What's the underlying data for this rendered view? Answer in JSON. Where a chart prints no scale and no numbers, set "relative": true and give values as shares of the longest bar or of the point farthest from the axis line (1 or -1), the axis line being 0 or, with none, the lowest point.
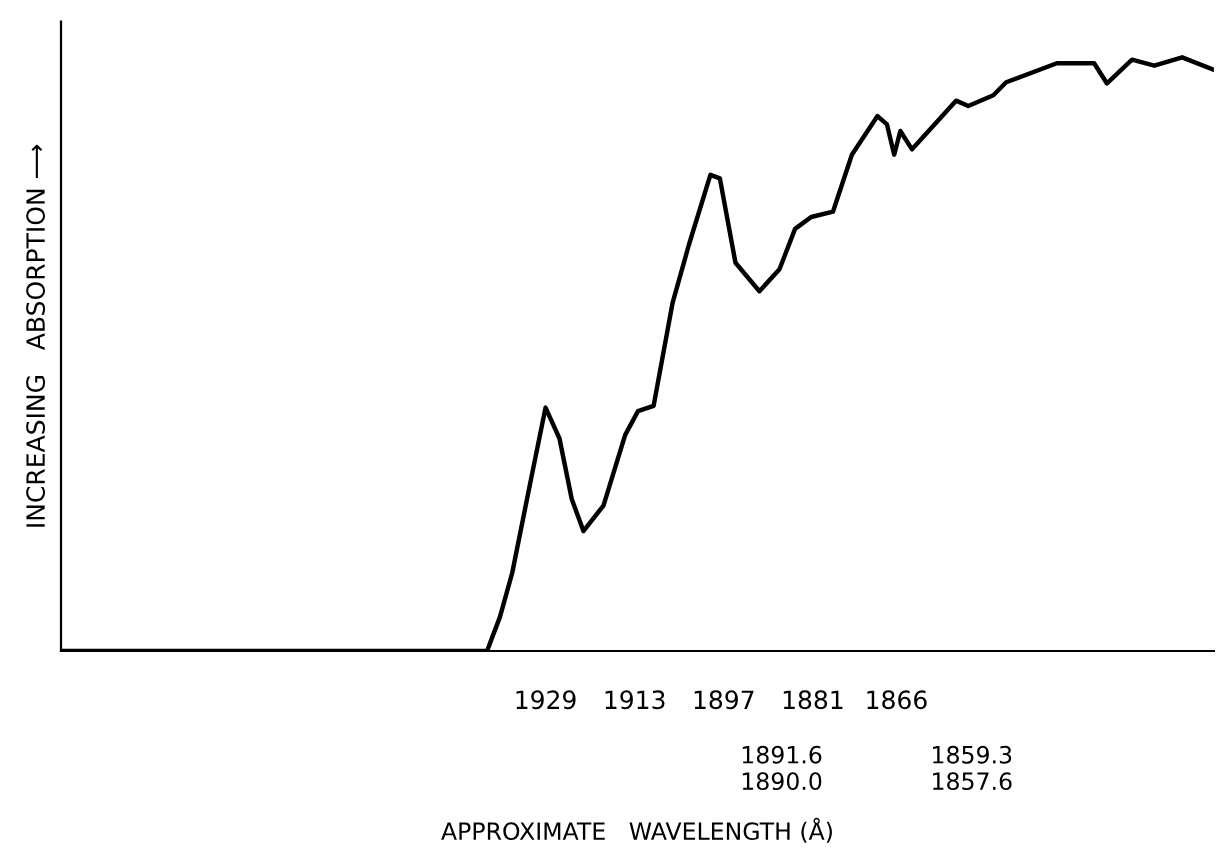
{
  "chart_data": {
    "type": "line",
    "relative": true,
    "xlabel": "APPROXIMATE   WAVELENGTH (Å)",
    "ylabel": "INCREASING   ABSORPTION ⟶",
    "x": [
      2016,
      1939.5,
      1937.2,
      1935.0,
      1931.6,
      1929,
      1926.5,
      1924.3,
      1922.2,
      1918.6,
      1914.7,
      1912.4,
      1909.6,
      1906.2,
      1903.3,
      1899.4,
      1897.7,
      1894.9,
      1890.6,
      1887.0,
      1884.2,
      1881.3,
      1877.4,
      1874.0,
      1869.4,
      1867.7,
      1866.4,
      1865.3,
      1863.2,
      1855.3,
      1853.1,
      1848.6,
      1846.3,
      1837.2,
      1830.5,
      1828.2,
      1823.7,
      1819.7,
      1814.7,
      1809
    ],
    "series": [
      {
        "color": "#000000",
        "values": [
          0,
          0,
          0.057,
          0.131,
          0.29,
          0.41,
          0.358,
          0.256,
          0.202,
          0.245,
          0.364,
          0.404,
          0.413,
          0.586,
          0.683,
          0.802,
          0.796,
          0.654,
          0.606,
          0.643,
          0.711,
          0.731,
          0.74,
          0.836,
          0.901,
          0.887,
          0.836,
          0.876,
          0.845,
          0.927,
          0.918,
          0.936,
          0.958,
          0.99,
          0.99,
          0.956,
          0.996,
          0.986,
          1.0,
          0.979
        ]
      }
    ],
    "xlim": [
      2016,
      1809
    ],
    "xticks": [
      1929,
      1913,
      1897,
      1881,
      1866
    ],
    "annotations": [
      "1891.6\n1890.0",
      "1859.3\n1857.6"
    ],
    "grid": false,
    "marker": "none",
    "line_style": "solid"
  }
}
